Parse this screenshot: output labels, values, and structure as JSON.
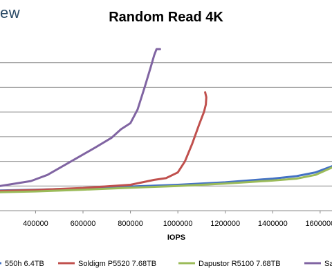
{
  "brand": {
    "text": "ew"
  },
  "chart_data": {
    "type": "line",
    "title": "Random Read 4K",
    "xlabel": "IOPS",
    "ylabel": "",
    "xlim": [
      250000,
      1650000
    ],
    "ylim": [
      0,
      7
    ],
    "x_ticks": [
      400000,
      600000,
      800000,
      1000000,
      1200000,
      1400000,
      1600000
    ],
    "x_tick_labels": [
      "400000",
      "600000",
      "800000",
      "1000000",
      "1200000",
      "1400000",
      "1600000"
    ],
    "y_gridlines": [
      1,
      2,
      3,
      4,
      5,
      6
    ],
    "grid": true,
    "legend_position": "bottom",
    "series": [
      {
        "name": "550h 6.4TB",
        "color": "#4472c4",
        "x": [
          250000,
          400000,
          600000,
          800000,
          1000000,
          1200000,
          1400000,
          1500000,
          1580000,
          1650000
        ],
        "y": [
          0.82,
          0.85,
          0.9,
          0.98,
          1.05,
          1.15,
          1.3,
          1.4,
          1.55,
          1.8
        ]
      },
      {
        "name": "Soldigm P5520 7.68TB",
        "color": "#c0504d",
        "x": [
          250000,
          400000,
          600000,
          800000,
          900000,
          950000,
          1000000,
          1030000,
          1060000,
          1090000,
          1110000,
          1118000,
          1120000,
          1115000
        ],
        "y": [
          0.8,
          0.84,
          0.92,
          1.05,
          1.25,
          1.32,
          1.55,
          2.0,
          2.7,
          3.5,
          4.0,
          4.3,
          4.6,
          4.8
        ]
      },
      {
        "name": "Dapustor R5100 7.68TB",
        "color": "#9bbb59",
        "x": [
          250000,
          400000,
          600000,
          800000,
          1000000,
          1200000,
          1400000,
          1500000,
          1580000,
          1650000
        ],
        "y": [
          0.75,
          0.78,
          0.85,
          0.93,
          1.0,
          1.1,
          1.22,
          1.3,
          1.45,
          1.75
        ]
      },
      {
        "name": "Sa",
        "color": "#8064a2",
        "x": [
          250000,
          380000,
          450000,
          550000,
          650000,
          720000,
          760000,
          800000,
          830000,
          860000,
          885000,
          900000,
          910000,
          925000
        ],
        "y": [
          1.0,
          1.2,
          1.45,
          2.0,
          2.55,
          2.95,
          3.3,
          3.55,
          4.1,
          5.0,
          5.8,
          6.3,
          6.55,
          6.55
        ]
      }
    ]
  }
}
